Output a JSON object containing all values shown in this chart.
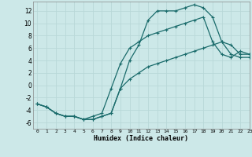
{
  "xlabel": "Humidex (Indice chaleur)",
  "bg_color": "#cce8e8",
  "grid_color": "#b8d8d8",
  "line_color": "#1a6b6b",
  "xlim": [
    -0.5,
    23
  ],
  "ylim": [
    -7,
    13.5
  ],
  "xticks": [
    0,
    1,
    2,
    3,
    4,
    5,
    6,
    7,
    8,
    9,
    10,
    11,
    12,
    13,
    14,
    15,
    16,
    17,
    18,
    19,
    20,
    21,
    22,
    23
  ],
  "yticks": [
    -6,
    -4,
    -2,
    0,
    2,
    4,
    6,
    8,
    10,
    12
  ],
  "line1_x": [
    0,
    1,
    2,
    3,
    4,
    5,
    6,
    7,
    8,
    9,
    10,
    11,
    12,
    13,
    14,
    15,
    16,
    17,
    18,
    19,
    20,
    21,
    22,
    23
  ],
  "line1_y": [
    -3,
    -3.5,
    -4.5,
    -5,
    -5,
    -5.5,
    -5.5,
    -5,
    -4.5,
    -0.5,
    4,
    6.5,
    10.5,
    12,
    12,
    12,
    12.5,
    13,
    12.5,
    11,
    7,
    6.5,
    5,
    5
  ],
  "line2_x": [
    0,
    1,
    2,
    3,
    4,
    5,
    6,
    7,
    8,
    9,
    10,
    11,
    12,
    13,
    14,
    15,
    16,
    17,
    18,
    19,
    20,
    21,
    22,
    23
  ],
  "line2_y": [
    -3,
    -3.5,
    -4.5,
    -5,
    -5,
    -5.5,
    -5,
    -4.5,
    -0.5,
    3.5,
    6,
    7,
    8,
    8.5,
    9,
    9.5,
    10,
    10.5,
    11,
    7,
    5,
    4.5,
    5.5,
    5
  ],
  "line3_x": [
    0,
    1,
    2,
    3,
    4,
    5,
    6,
    7,
    8,
    9,
    10,
    11,
    12,
    13,
    14,
    15,
    16,
    17,
    18,
    19,
    20,
    21,
    22,
    23
  ],
  "line3_y": [
    -3,
    -3.5,
    -4.5,
    -5,
    -5,
    -5.5,
    -5.5,
    -5,
    -4.5,
    -0.5,
    1,
    2,
    3,
    3.5,
    4,
    4.5,
    5,
    5.5,
    6,
    6.5,
    7,
    5,
    4.5,
    4.5
  ],
  "marker": "+",
  "markersize": 3.5,
  "linewidth": 0.9
}
